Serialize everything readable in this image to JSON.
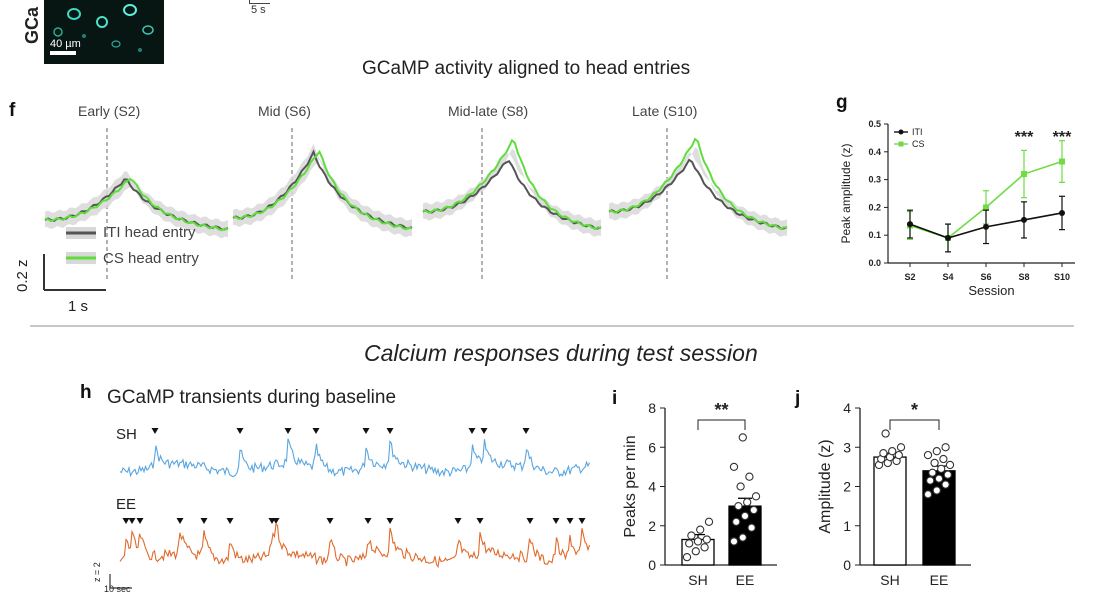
{
  "header": {
    "gc_label": "GCa",
    "scale_bar_um": "40 µm",
    "time_bar": "5 s"
  },
  "panel_f": {
    "letter": "f",
    "title": "GCaMP activity aligned to head entries",
    "stages": [
      "Early (S2)",
      "Mid (S6)",
      "Mid-late (S8)",
      "Late (S10)"
    ],
    "legend": [
      "ITI head entry",
      "CS head entry"
    ],
    "z_scale": "0.2 z",
    "t_scale": "1 s",
    "colors": {
      "iti": "#555555",
      "cs": "#5fdd3c",
      "band": "#d8d8d8"
    }
  },
  "panel_g": {
    "letter": "g",
    "significance": [
      "***",
      "***"
    ]
  },
  "divider_title": "Calcium responses during test session",
  "panel_h": {
    "letter": "h",
    "title": "GCaMP transients during baseline",
    "rows": [
      "SH",
      "EE"
    ],
    "scale_z": "z = 2",
    "scale_t": "10 sec",
    "colors": {
      "sh": "#5aa6e0",
      "ee": "#e06a2c"
    }
  },
  "panel_i": {
    "letter": "i",
    "significance": "**"
  },
  "panel_j": {
    "letter": "j",
    "significance": "*"
  },
  "chart_data": [
    {
      "type": "line",
      "id": "g",
      "title": "",
      "xlabel": "Session",
      "ylabel": "Peak amplitude (z)",
      "categories": [
        "S2",
        "S4",
        "S6",
        "S8",
        "S10"
      ],
      "ylim": [
        0.0,
        0.5
      ],
      "yticks": [
        "0.0",
        "0.1",
        "0.2",
        "0.3",
        "0.4",
        "0.5"
      ],
      "legend": [
        "ITI",
        "CS"
      ],
      "series": [
        {
          "name": "ITI",
          "color": "#111111",
          "values": [
            0.14,
            0.09,
            0.13,
            0.155,
            0.18
          ],
          "err": [
            0.05,
            0.05,
            0.06,
            0.065,
            0.06
          ]
        },
        {
          "name": "CS",
          "color": "#6fdc44",
          "values": [
            0.135,
            0.09,
            0.2,
            0.32,
            0.365
          ],
          "err": [
            0.05,
            0.05,
            0.06,
            0.085,
            0.075
          ]
        }
      ],
      "annotations": [
        {
          "category": "S8",
          "text": "***"
        },
        {
          "category": "S10",
          "text": "***"
        }
      ]
    },
    {
      "type": "bar",
      "id": "i",
      "ylabel": "Peaks per min",
      "categories": [
        "SH",
        "EE"
      ],
      "values": [
        1.3,
        3.0
      ],
      "err": [
        0.25,
        0.4
      ],
      "ylim": [
        0,
        8
      ],
      "yticks": [
        "0",
        "2",
        "4",
        "6",
        "8"
      ],
      "bar_fill": [
        "#ffffff",
        "#000000"
      ],
      "points": [
        [
          0.4,
          0.7,
          0.9,
          1.1,
          1.2,
          1.3,
          1.5,
          1.8,
          2.2
        ],
        [
          1.2,
          1.4,
          1.9,
          2.2,
          2.5,
          2.8,
          3.0,
          3.2,
          3.5,
          4.0,
          4.5,
          5.0,
          6.5
        ]
      ],
      "annotation": "**"
    },
    {
      "type": "bar",
      "id": "j",
      "ylabel": "Amplitude (z)",
      "categories": [
        "SH",
        "EE"
      ],
      "values": [
        2.75,
        2.4
      ],
      "err": [
        0.1,
        0.12
      ],
      "ylim": [
        0,
        4
      ],
      "yticks": [
        "0",
        "1",
        "2",
        "3",
        "4"
      ],
      "bar_fill": [
        "#ffffff",
        "#000000"
      ],
      "points": [
        [
          2.55,
          2.6,
          2.65,
          2.7,
          2.75,
          2.8,
          2.85,
          2.9,
          3.0,
          3.35
        ],
        [
          1.8,
          1.9,
          2.05,
          2.15,
          2.2,
          2.3,
          2.35,
          2.45,
          2.55,
          2.6,
          2.7,
          2.8,
          2.9,
          3.0
        ]
      ],
      "annotation": "*"
    }
  ]
}
